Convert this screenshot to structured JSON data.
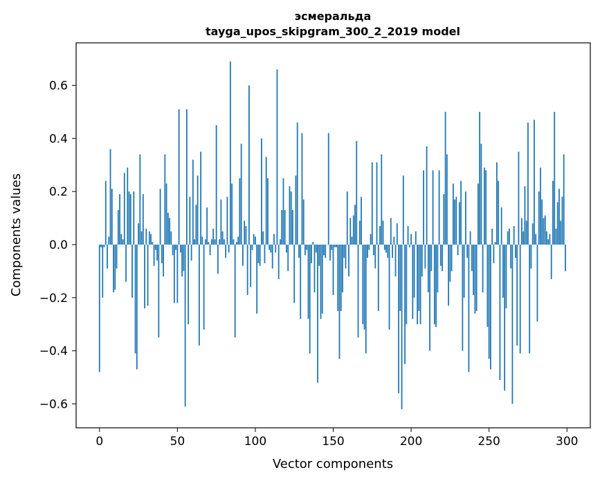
{
  "chart_data": {
    "type": "bar",
    "title": "эсмеральда",
    "subtitle": "tayga_upos_skipgram_300_2_2019 model",
    "xlabel": "Vector components",
    "ylabel": "Components values",
    "xlim": [
      -15,
      315
    ],
    "ylim": [
      -0.69,
      0.76
    ],
    "xticks": [
      0,
      50,
      100,
      150,
      200,
      250,
      300
    ],
    "xtick_labels": [
      "0",
      "50",
      "100",
      "150",
      "200",
      "250",
      "300"
    ],
    "yticks": [
      -0.6,
      -0.4,
      -0.2,
      0.0,
      0.2,
      0.4,
      0.6
    ],
    "ytick_labels": [
      "−0.6",
      "−0.4",
      "−0.2",
      "0.0",
      "0.2",
      "0.4",
      "0.6"
    ],
    "bar_color": "#1f77b4",
    "grid": false,
    "x": [
      0,
      1,
      2,
      3,
      4,
      5,
      6,
      7,
      8,
      9,
      10,
      11,
      12,
      13,
      14,
      15,
      16,
      17,
      18,
      19,
      20,
      21,
      22,
      23,
      24,
      25,
      26,
      27,
      28,
      29,
      30,
      31,
      32,
      33,
      34,
      35,
      36,
      37,
      38,
      39,
      40,
      41,
      42,
      43,
      44,
      45,
      46,
      47,
      48,
      49,
      50,
      51,
      52,
      53,
      54,
      55,
      56,
      57,
      58,
      59,
      60,
      61,
      62,
      63,
      64,
      65,
      66,
      67,
      68,
      69,
      70,
      71,
      72,
      73,
      74,
      75,
      76,
      77,
      78,
      79,
      80,
      81,
      82,
      83,
      84,
      85,
      86,
      87,
      88,
      89,
      90,
      91,
      92,
      93,
      94,
      95,
      96,
      97,
      98,
      99,
      100,
      101,
      102,
      103,
      104,
      105,
      106,
      107,
      108,
      109,
      110,
      111,
      112,
      113,
      114,
      115,
      116,
      117,
      118,
      119,
      120,
      121,
      122,
      123,
      124,
      125,
      126,
      127,
      128,
      129,
      130,
      131,
      132,
      133,
      134,
      135,
      136,
      137,
      138,
      139,
      140,
      141,
      142,
      143,
      144,
      145,
      146,
      147,
      148,
      149,
      150,
      151,
      152,
      153,
      154,
      155,
      156,
      157,
      158,
      159,
      160,
      161,
      162,
      163,
      164,
      165,
      166,
      167,
      168,
      169,
      170,
      171,
      172,
      173,
      174,
      175,
      176,
      177,
      178,
      179,
      180,
      181,
      182,
      183,
      184,
      185,
      186,
      187,
      188,
      189,
      190,
      191,
      192,
      193,
      194,
      195,
      196,
      197,
      198,
      199,
      200,
      201,
      202,
      203,
      204,
      205,
      206,
      207,
      208,
      209,
      210,
      211,
      212,
      213,
      214,
      215,
      216,
      217,
      218,
      219,
      220,
      221,
      222,
      223,
      224,
      225,
      226,
      227,
      228,
      229,
      230,
      231,
      232,
      233,
      234,
      235,
      236,
      237,
      238,
      239,
      240,
      241,
      242,
      243,
      244,
      245,
      246,
      247,
      248,
      249,
      250,
      251,
      252,
      253,
      254,
      255,
      256,
      257,
      258,
      259,
      260,
      261,
      262,
      263,
      264,
      265,
      266,
      267,
      268,
      269,
      270,
      271,
      272,
      273,
      274,
      275,
      276,
      277,
      278,
      279,
      280,
      281,
      282,
      283,
      284,
      285,
      286,
      287,
      288,
      289,
      290,
      291,
      292,
      293,
      294,
      295,
      296,
      297,
      298,
      299
    ],
    "values": [
      -0.48,
      -0.01,
      -0.2,
      -0.01,
      0.24,
      -0.09,
      0.03,
      0.36,
      0.21,
      -0.18,
      -0.17,
      -0.09,
      0.13,
      0.19,
      0.04,
      0.02,
      0.27,
      -0.14,
      0.29,
      0.2,
      0.19,
      -0.2,
      0.2,
      -0.41,
      -0.47,
      0.08,
      0.34,
      0.05,
      0.19,
      -0.24,
      0.06,
      -0.23,
      0.05,
      0.04,
      0.01,
      -0.08,
      -0.02,
      -0.06,
      -0.35,
      0.21,
      -0.07,
      -0.12,
      0.34,
      0.23,
      0.12,
      0.1,
      0.05,
      -0.04,
      -0.22,
      -0.02,
      -0.22,
      0.51,
      -0.03,
      -0.12,
      -0.1,
      -0.61,
      0.51,
      -0.3,
      0.18,
      -0.06,
      0.32,
      0.02,
      0.15,
      0.26,
      -0.38,
      0.35,
      0.03,
      -0.32,
      0.02,
      0.14,
      0.01,
      -0.04,
      0.02,
      0.06,
      0.02,
      0.45,
      -0.11,
      0.02,
      0.17,
      0.05,
      0.02,
      -0.05,
      0.18,
      -0.03,
      0.69,
      0.23,
      0.02,
      -0.35,
      0.01,
      0.03,
      0.25,
      0.38,
      -0.08,
      0.09,
      0.07,
      -0.19,
      0.6,
      -0.16,
      -0.02,
      0.04,
      0.03,
      -0.26,
      -0.07,
      -0.08,
      0.4,
      0.05,
      -0.07,
      0.33,
      0.25,
      -0.02,
      -0.03,
      -0.09,
      0.04,
      -0.03,
      0.66,
      -0.13,
      0.02,
      0.13,
      0.25,
      0.13,
      -0.03,
      -0.1,
      0.22,
      0.2,
      0.13,
      -0.22,
      0.26,
      0.46,
      -0.05,
      -0.28,
      0.42,
      0.17,
      -0.04,
      -0.02,
      -0.28,
      -0.41,
      -0.07,
      0.01,
      -0.18,
      -0.03,
      -0.52,
      -0.08,
      -0.28,
      -0.26,
      -0.04,
      -0.05,
      0.0,
      0.42,
      -0.06,
      -0.02,
      -0.19,
      -0.01,
      -0.01,
      -0.25,
      -0.43,
      -0.25,
      -0.18,
      -0.05,
      -0.09,
      0.2,
      -0.12,
      0.1,
      0.03,
      0.11,
      0.15,
      0.39,
      -0.35,
      0.09,
      0.18,
      -0.3,
      -0.32,
      -0.41,
      -0.05,
      -0.02,
      0.04,
      0.31,
      -0.04,
      -0.09,
      0.31,
      -0.25,
      0.07,
      0.34,
      0.09,
      -0.02,
      -0.03,
      -0.05,
      -0.32,
      0.1,
      -0.05,
      0.03,
      -0.12,
      0.08,
      -0.56,
      -0.25,
      -0.62,
      0.26,
      -0.45,
      -0.3,
      0.07,
      -0.01,
      0.04,
      -0.28,
      -0.2,
      0.05,
      -0.3,
      -0.25,
      -0.3,
      -0.12,
      0.28,
      -0.09,
      0.37,
      -0.18,
      -0.4,
      -0.1,
      0.28,
      -0.3,
      -0.31,
      -0.18,
      0.28,
      -0.08,
      -0.1,
      0.19,
      0.5,
      0.34,
      -0.23,
      -0.14,
      -0.1,
      0.23,
      0.17,
      0.18,
      -0.04,
      0.16,
      0.24,
      -0.4,
      -0.2,
      0.2,
      -0.05,
      -0.48,
      0.05,
      -0.1,
      -0.19,
      -0.26,
      -0.25,
      0.23,
      0.5,
      0.38,
      -0.18,
      0.29,
      0.28,
      -0.31,
      -0.43,
      -0.47,
      0.06,
      -0.07,
      0.01,
      0.31,
      0.24,
      -0.51,
      0.14,
      -0.2,
      -0.55,
      -0.24,
      0.05,
      0.06,
      -0.09,
      -0.6,
      0.07,
      -0.05,
      -0.38,
      0.35,
      -0.41,
      0.1,
      0.05,
      0.22,
      0.09,
      0.46,
      -0.41,
      -0.09,
      0.08,
      0.47,
      0.04,
      -0.29,
      0.2,
      0.29,
      0.17,
      0.1,
      0.11,
      0.05,
      0.02,
      0.04,
      -0.13,
      0.24,
      0.5,
      0.06,
      0.16,
      0.21,
      0.09,
      0.18,
      0.34,
      -0.1
    ]
  }
}
